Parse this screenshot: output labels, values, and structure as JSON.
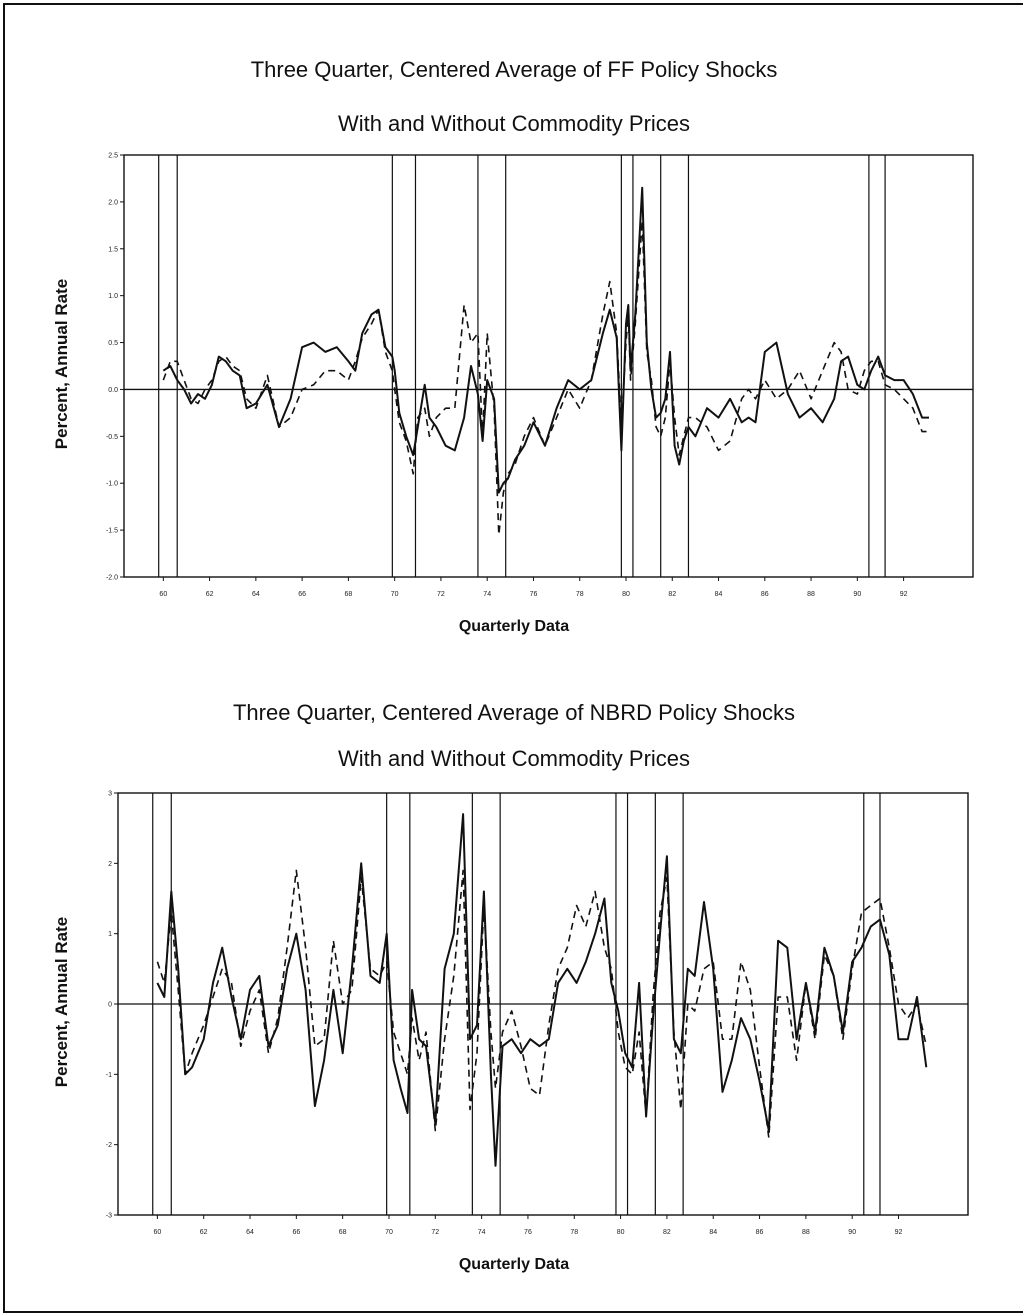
{
  "chart_data": [
    {
      "type": "line",
      "title": "Three Quarter, Centered Average of FF Policy Shocks",
      "subtitle": "With and Without Commodity Prices",
      "xlabel": "Quarterly Data",
      "ylabel": "Percent, Annual Rate",
      "xlim": [
        1958,
        1995
      ],
      "ylim": [
        -2.0,
        2.5
      ],
      "yticks": [
        "2.5",
        "2.0",
        "1.5",
        "1.0",
        "0.5",
        "0.0",
        "-0.5",
        "-1.0",
        "-1.5",
        "-2.0"
      ],
      "xticks": [
        "60",
        "62",
        "64",
        "66",
        "68",
        "70",
        "72",
        "74",
        "76",
        "78",
        "80",
        "82",
        "84",
        "86",
        "88",
        "90",
        "92"
      ],
      "vertical_lines": [
        59.8,
        60.6,
        69.9,
        70.9,
        73.6,
        74.8,
        79.8,
        80.3,
        81.5,
        82.7,
        90.5,
        91.2
      ],
      "zero_line": true,
      "series": [
        {
          "style": "solid",
          "x": [
            60.0,
            60.3,
            60.6,
            60.9,
            61.2,
            61.5,
            61.8,
            62.1,
            62.4,
            62.7,
            63.0,
            63.3,
            63.6,
            64.0,
            64.5,
            65.0,
            65.5,
            66.0,
            66.5,
            67.0,
            67.5,
            68.0,
            68.3,
            68.6,
            69.0,
            69.3,
            69.6,
            69.9,
            70.0,
            70.2,
            70.5,
            70.8,
            71.0,
            71.3,
            71.5,
            71.8,
            72.2,
            72.6,
            73.0,
            73.3,
            73.6,
            73.8,
            74.0,
            74.3,
            74.5,
            74.7,
            74.9,
            75.2,
            75.6,
            76.0,
            76.5,
            77.0,
            77.5,
            78.0,
            78.5,
            79.0,
            79.3,
            79.6,
            79.8,
            80.0,
            80.1,
            80.2,
            80.4,
            80.7,
            80.9,
            81.1,
            81.3,
            81.5,
            81.7,
            81.9,
            82.1,
            82.3,
            82.5,
            82.7,
            83.0,
            83.5,
            84.0,
            84.5,
            85.0,
            85.3,
            85.6,
            86.0,
            86.5,
            87.0,
            87.5,
            88.0,
            88.5,
            89.0,
            89.3,
            89.6,
            90.0,
            90.3,
            90.6,
            90.9,
            91.2,
            91.6,
            92.0,
            92.4,
            92.8,
            93.1
          ],
          "y": [
            0.2,
            0.25,
            0.1,
            0.0,
            -0.15,
            -0.05,
            -0.1,
            0.05,
            0.35,
            0.3,
            0.2,
            0.15,
            -0.2,
            -0.15,
            0.05,
            -0.4,
            -0.1,
            0.45,
            0.5,
            0.4,
            0.45,
            0.3,
            0.2,
            0.6,
            0.8,
            0.85,
            0.45,
            0.35,
            0.2,
            -0.25,
            -0.5,
            -0.7,
            -0.4,
            0.05,
            -0.3,
            -0.4,
            -0.6,
            -0.65,
            -0.3,
            0.25,
            -0.05,
            -0.55,
            0.1,
            -0.1,
            -1.1,
            -1.0,
            -0.95,
            -0.75,
            -0.6,
            -0.35,
            -0.6,
            -0.2,
            0.1,
            0.0,
            0.1,
            0.6,
            0.85,
            0.55,
            -0.65,
            0.7,
            0.9,
            0.2,
            0.8,
            2.15,
            0.5,
            0.0,
            -0.3,
            -0.25,
            -0.1,
            0.4,
            -0.6,
            -0.8,
            -0.55,
            -0.4,
            -0.5,
            -0.2,
            -0.3,
            -0.1,
            -0.35,
            -0.3,
            -0.35,
            0.4,
            0.5,
            -0.05,
            -0.3,
            -0.2,
            -0.35,
            -0.1,
            0.3,
            0.35,
            0.05,
            0.0,
            0.2,
            0.35,
            0.15,
            0.1,
            0.1,
            -0.05,
            -0.3,
            -0.3
          ]
        },
        {
          "style": "dashed",
          "x": [
            60.0,
            60.3,
            60.6,
            60.9,
            61.2,
            61.5,
            61.8,
            62.1,
            62.4,
            62.7,
            63.0,
            63.3,
            63.6,
            64.0,
            64.5,
            65.0,
            65.5,
            66.0,
            66.5,
            67.0,
            67.5,
            68.0,
            68.3,
            68.6,
            69.0,
            69.3,
            69.6,
            69.9,
            70.0,
            70.2,
            70.5,
            70.8,
            71.0,
            71.3,
            71.5,
            71.8,
            72.2,
            72.6,
            73.0,
            73.3,
            73.6,
            73.8,
            74.0,
            74.3,
            74.5,
            74.7,
            74.9,
            75.2,
            75.6,
            76.0,
            76.5,
            77.0,
            77.5,
            78.0,
            78.5,
            79.0,
            79.3,
            79.6,
            79.8,
            80.0,
            80.1,
            80.2,
            80.4,
            80.7,
            80.9,
            81.1,
            81.3,
            81.5,
            81.7,
            81.9,
            82.1,
            82.3,
            82.5,
            82.7,
            83.0,
            83.5,
            84.0,
            84.5,
            85.0,
            85.3,
            85.6,
            86.0,
            86.5,
            87.0,
            87.5,
            88.0,
            88.5,
            89.0,
            89.3,
            89.6,
            90.0,
            90.3,
            90.6,
            90.9,
            91.2,
            91.6,
            92.0,
            92.4,
            92.8,
            93.1
          ],
          "y": [
            0.1,
            0.3,
            0.3,
            0.1,
            -0.1,
            -0.15,
            0.0,
            0.1,
            0.3,
            0.35,
            0.25,
            0.2,
            -0.1,
            -0.2,
            0.15,
            -0.4,
            -0.3,
            0.0,
            0.05,
            0.2,
            0.2,
            0.1,
            0.3,
            0.55,
            0.7,
            0.85,
            0.4,
            0.2,
            0.0,
            -0.35,
            -0.55,
            -0.9,
            -0.3,
            -0.2,
            -0.5,
            -0.3,
            -0.2,
            -0.2,
            0.9,
            0.5,
            0.6,
            -0.5,
            0.6,
            -0.2,
            -1.55,
            -1.1,
            -0.9,
            -0.8,
            -0.5,
            -0.3,
            -0.6,
            -0.3,
            0.0,
            -0.2,
            0.1,
            0.8,
            1.15,
            0.6,
            -0.4,
            0.5,
            0.8,
            0.1,
            0.7,
            1.8,
            0.4,
            0.1,
            -0.4,
            -0.5,
            -0.3,
            0.3,
            -0.3,
            -0.7,
            -0.5,
            -0.3,
            -0.3,
            -0.4,
            -0.65,
            -0.55,
            -0.1,
            0.0,
            -0.1,
            0.1,
            -0.1,
            0.0,
            0.2,
            -0.1,
            0.2,
            0.5,
            0.4,
            0.0,
            -0.05,
            0.2,
            0.3,
            0.3,
            0.05,
            0.0,
            -0.1,
            -0.2,
            -0.45,
            -0.45
          ]
        }
      ]
    },
    {
      "type": "line",
      "title": "Three Quarter, Centered Average of NBRD Policy Shocks",
      "subtitle": "With and Without Commodity Prices",
      "xlabel": "Quarterly Data",
      "ylabel": "Percent, Annual Rate",
      "xlim": [
        1958,
        1995
      ],
      "ylim": [
        -3,
        3
      ],
      "yticks": [
        "3",
        "2",
        "1",
        "0",
        "-1",
        "-2",
        "-3"
      ],
      "xticks": [
        "60",
        "62",
        "64",
        "66",
        "68",
        "70",
        "72",
        "74",
        "76",
        "78",
        "80",
        "82",
        "84",
        "86",
        "88",
        "90",
        "92"
      ],
      "vertical_lines": [
        59.8,
        60.6,
        69.9,
        70.9,
        73.6,
        74.8,
        79.8,
        80.3,
        81.5,
        82.7,
        90.5,
        91.2
      ],
      "zero_line": true,
      "series": [
        {
          "style": "solid",
          "x": [
            60.0,
            60.3,
            60.6,
            60.9,
            61.2,
            61.5,
            62.0,
            62.4,
            62.8,
            63.2,
            63.6,
            64.0,
            64.4,
            64.8,
            65.2,
            65.6,
            66.0,
            66.4,
            66.8,
            67.2,
            67.6,
            68.0,
            68.4,
            68.8,
            69.2,
            69.6,
            69.9,
            70.2,
            70.5,
            70.8,
            71.0,
            71.3,
            71.6,
            72.0,
            72.4,
            72.8,
            73.2,
            73.5,
            73.8,
            74.1,
            74.4,
            74.6,
            74.9,
            75.3,
            75.7,
            76.1,
            76.5,
            76.9,
            77.3,
            77.7,
            78.1,
            78.5,
            78.9,
            79.3,
            79.6,
            79.9,
            80.2,
            80.5,
            80.8,
            81.1,
            81.4,
            81.7,
            82.0,
            82.3,
            82.6,
            82.9,
            83.2,
            83.6,
            84.0,
            84.4,
            84.8,
            85.2,
            85.6,
            86.0,
            86.4,
            86.8,
            87.2,
            87.6,
            88.0,
            88.4,
            88.8,
            89.2,
            89.6,
            90.0,
            90.4,
            90.8,
            91.2,
            91.6,
            92.0,
            92.4,
            92.8,
            93.2
          ],
          "y": [
            0.3,
            0.1,
            1.6,
            0.5,
            -1.0,
            -0.9,
            -0.5,
            0.3,
            0.8,
            0.1,
            -0.5,
            0.2,
            0.4,
            -0.6,
            -0.3,
            0.5,
            1.0,
            0.2,
            -1.45,
            -0.8,
            0.2,
            -0.7,
            0.5,
            2.0,
            0.4,
            0.3,
            1.0,
            -0.8,
            -1.2,
            -1.55,
            0.2,
            -0.5,
            -0.6,
            -1.7,
            0.5,
            1.0,
            2.7,
            -0.5,
            -0.3,
            1.6,
            -1.0,
            -2.3,
            -0.6,
            -0.5,
            -0.7,
            -0.5,
            -0.6,
            -0.5,
            0.3,
            0.5,
            0.3,
            0.6,
            1.0,
            1.5,
            0.3,
            -0.1,
            -0.7,
            -0.9,
            0.3,
            -1.6,
            -0.2,
            1.0,
            2.1,
            -0.5,
            -0.7,
            0.5,
            0.4,
            1.45,
            0.5,
            -1.25,
            -0.8,
            -0.2,
            -0.5,
            -1.1,
            -1.8,
            0.9,
            0.8,
            -0.5,
            0.3,
            -0.4,
            0.8,
            0.4,
            -0.4,
            0.6,
            0.8,
            1.1,
            1.2,
            0.7,
            -0.5,
            -0.5,
            0.1,
            -0.9
          ]
        },
        {
          "style": "dashed",
          "x": [
            60.0,
            60.3,
            60.6,
            60.9,
            61.2,
            61.5,
            62.0,
            62.4,
            62.8,
            63.2,
            63.6,
            64.0,
            64.4,
            64.8,
            65.2,
            65.6,
            66.0,
            66.4,
            66.8,
            67.2,
            67.6,
            68.0,
            68.4,
            68.8,
            69.2,
            69.6,
            69.9,
            70.2,
            70.5,
            70.8,
            71.0,
            71.3,
            71.6,
            72.0,
            72.4,
            72.8,
            73.2,
            73.5,
            73.8,
            74.1,
            74.4,
            74.6,
            74.9,
            75.3,
            75.7,
            76.1,
            76.5,
            76.9,
            77.3,
            77.7,
            78.1,
            78.5,
            78.9,
            79.3,
            79.6,
            79.9,
            80.2,
            80.5,
            80.8,
            81.1,
            81.4,
            81.7,
            82.0,
            82.3,
            82.6,
            82.9,
            83.2,
            83.6,
            84.0,
            84.4,
            84.8,
            85.2,
            85.6,
            86.0,
            86.4,
            86.8,
            87.2,
            87.6,
            88.0,
            88.4,
            88.8,
            89.2,
            89.6,
            90.0,
            90.4,
            90.8,
            91.2,
            91.6,
            92.0,
            92.4,
            92.8,
            93.2
          ],
          "y": [
            0.6,
            0.3,
            1.3,
            0.2,
            -1.0,
            -0.7,
            -0.3,
            0.1,
            0.5,
            0.3,
            -0.6,
            -0.1,
            0.2,
            -0.7,
            -0.2,
            0.8,
            1.9,
            0.8,
            -0.6,
            -0.5,
            0.9,
            0.0,
            0.2,
            1.8,
            0.5,
            0.4,
            0.6,
            -0.4,
            -0.7,
            -1.0,
            -0.2,
            -0.8,
            -0.4,
            -1.8,
            -0.5,
            0.4,
            1.9,
            -1.5,
            -0.7,
            1.4,
            -0.4,
            -1.2,
            -0.4,
            -0.1,
            -0.6,
            -1.2,
            -1.3,
            -0.3,
            0.5,
            0.8,
            1.4,
            1.1,
            1.6,
            0.8,
            0.5,
            -0.4,
            -0.9,
            -1.0,
            -0.4,
            -1.6,
            0.1,
            1.3,
            1.8,
            -0.4,
            -1.5,
            0.0,
            -0.1,
            0.5,
            0.6,
            -0.5,
            -0.5,
            0.6,
            0.2,
            -0.9,
            -1.9,
            0.1,
            0.1,
            -0.8,
            0.3,
            -0.5,
            0.7,
            0.4,
            -0.5,
            0.5,
            1.3,
            1.4,
            1.5,
            0.8,
            0.0,
            -0.2,
            0.0,
            -0.6
          ]
        }
      ]
    }
  ]
}
